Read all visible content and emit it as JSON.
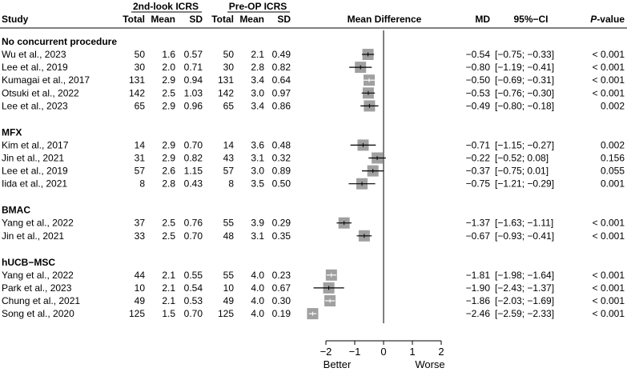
{
  "chart_data": {
    "type": "forest",
    "headers": {
      "group_2nd": "2nd-look ICRS",
      "group_pre": "Pre-OP ICRS",
      "study": "Study",
      "total": "Total",
      "mean": "Mean",
      "sd": "SD",
      "plot": "Mean Difference",
      "md": "MD",
      "ci": "95%−CI",
      "p": "P-value"
    },
    "groups": [
      {
        "name": "No concurrent procedure",
        "studies": [
          {
            "study": "Wu et al., 2023",
            "t1": "50",
            "m1": "1.6",
            "s1": "0.57",
            "t2": "50",
            "m2": "2.1",
            "s2": "0.49",
            "md": -0.54,
            "lo": -0.75,
            "hi": -0.33,
            "md_label": "−0.54",
            "ci_label": "[−0.75; −0.33]",
            "p": "< 0.001"
          },
          {
            "study": "Lee et al., 2019",
            "t1": "30",
            "m1": "2.0",
            "s1": "0.71",
            "t2": "30",
            "m2": "2.8",
            "s2": "0.82",
            "md": -0.8,
            "lo": -1.19,
            "hi": -0.41,
            "md_label": "−0.80",
            "ci_label": "[−1.19; −0.41]",
            "p": "< 0.001"
          },
          {
            "study": "Kumagai et al., 2017",
            "t1": "131",
            "m1": "2.9",
            "s1": "0.94",
            "t2": "131",
            "m2": "3.4",
            "s2": "0.64",
            "md": -0.5,
            "lo": -0.69,
            "hi": -0.31,
            "md_label": "−0.50",
            "ci_label": "[−0.69; −0.31]",
            "p": "< 0.001"
          },
          {
            "study": "Otsuki et al., 2022",
            "t1": "142",
            "m1": "2.5",
            "s1": "1.03",
            "t2": "142",
            "m2": "3.0",
            "s2": "0.97",
            "md": -0.53,
            "lo": -0.76,
            "hi": -0.3,
            "md_label": "−0.53",
            "ci_label": "[−0.76; −0.30]",
            "p": "< 0.001"
          },
          {
            "study": "Lee et al., 2023",
            "t1": "65",
            "m1": "2.9",
            "s1": "0.96",
            "t2": "65",
            "m2": "3.4",
            "s2": "0.86",
            "md": -0.49,
            "lo": -0.8,
            "hi": -0.18,
            "md_label": "−0.49",
            "ci_label": "[−0.80; −0.18]",
            "p": "0.002"
          }
        ]
      },
      {
        "name": "MFX",
        "studies": [
          {
            "study": "Kim et al., 2017",
            "t1": "14",
            "m1": "2.9",
            "s1": "0.70",
            "t2": "14",
            "m2": "3.6",
            "s2": "0.48",
            "md": -0.71,
            "lo": -1.15,
            "hi": -0.27,
            "md_label": "−0.71",
            "ci_label": "[−1.15; −0.27]",
            "p": "0.002"
          },
          {
            "study": "Jin et al., 2021",
            "t1": "31",
            "m1": "2.9",
            "s1": "0.82",
            "t2": "43",
            "m2": "3.1",
            "s2": "0.32",
            "md": -0.22,
            "lo": -0.52,
            "hi": 0.08,
            "md_label": "−0.22",
            "ci_label": "[−0.52;  0.08]",
            "p": "0.156"
          },
          {
            "study": "Lee et al., 2019",
            "t1": "57",
            "m1": "2.6",
            "s1": "1.15",
            "t2": "57",
            "m2": "3.0",
            "s2": "0.89",
            "md": -0.37,
            "lo": -0.75,
            "hi": 0.01,
            "md_label": "−0.37",
            "ci_label": "[−0.75;  0.01]",
            "p": "0.055"
          },
          {
            "study": "Iida et al., 2021",
            "t1": "8",
            "m1": "2.8",
            "s1": "0.43",
            "t2": "8",
            "m2": "3.5",
            "s2": "0.50",
            "md": -0.75,
            "lo": -1.21,
            "hi": -0.29,
            "md_label": "−0.75",
            "ci_label": "[−1.21; −0.29]",
            "p": "0.001"
          }
        ]
      },
      {
        "name": "BMAC",
        "studies": [
          {
            "study": "Yang et al., 2022",
            "t1": "37",
            "m1": "2.5",
            "s1": "0.76",
            "t2": "55",
            "m2": "3.9",
            "s2": "0.29",
            "md": -1.37,
            "lo": -1.63,
            "hi": -1.11,
            "md_label": "−1.37",
            "ci_label": "[−1.63; −1.11]",
            "p": "< 0.001"
          },
          {
            "study": "Jin et al., 2021",
            "t1": "33",
            "m1": "2.5",
            "s1": "0.70",
            "t2": "48",
            "m2": "3.1",
            "s2": "0.35",
            "md": -0.67,
            "lo": -0.93,
            "hi": -0.41,
            "md_label": "−0.67",
            "ci_label": "[−0.93; −0.41]",
            "p": "< 0.001"
          }
        ]
      },
      {
        "name": "hUCB−MSC",
        "studies": [
          {
            "study": "Yang et al., 2022",
            "t1": "44",
            "m1": "2.1",
            "s1": "0.55",
            "t2": "55",
            "m2": "4.0",
            "s2": "0.23",
            "md": -1.81,
            "lo": -1.98,
            "hi": -1.64,
            "md_label": "−1.81",
            "ci_label": "[−1.98; −1.64]",
            "p": "< 0.001"
          },
          {
            "study": "Park et al., 2023",
            "t1": "10",
            "m1": "2.1",
            "s1": "0.54",
            "t2": "10",
            "m2": "4.0",
            "s2": "0.67",
            "md": -1.9,
            "lo": -2.43,
            "hi": -1.37,
            "md_label": "−1.90",
            "ci_label": "[−2.43; −1.37]",
            "p": "< 0.001"
          },
          {
            "study": "Chung et al., 2021",
            "t1": "49",
            "m1": "2.1",
            "s1": "0.53",
            "t2": "49",
            "m2": "4.0",
            "s2": "0.30",
            "md": -1.86,
            "lo": -2.03,
            "hi": -1.69,
            "md_label": "−1.86",
            "ci_label": "[−2.03; −1.69]",
            "p": "< 0.001"
          },
          {
            "study": "Song et al., 2020",
            "t1": "125",
            "m1": "1.5",
            "s1": "0.70",
            "t2": "125",
            "m2": "4.0",
            "s2": "0.19",
            "md": -2.46,
            "lo": -2.59,
            "hi": -2.33,
            "md_label": "−2.46",
            "ci_label": "[−2.59; −2.33]",
            "p": "< 0.001"
          }
        ]
      }
    ],
    "x_axis": {
      "ticks": [
        -2,
        -1,
        0,
        1,
        2
      ],
      "tick_labels": [
        "−2",
        "−1",
        "0",
        "1",
        "2"
      ],
      "range": [
        -2,
        2
      ]
    },
    "better_label": "Better",
    "worse_label": "Worse",
    "reference_line": 0,
    "colors": {
      "box": "#a0a0a0",
      "line": "#000000",
      "light_whisker": "#ffffff"
    }
  }
}
